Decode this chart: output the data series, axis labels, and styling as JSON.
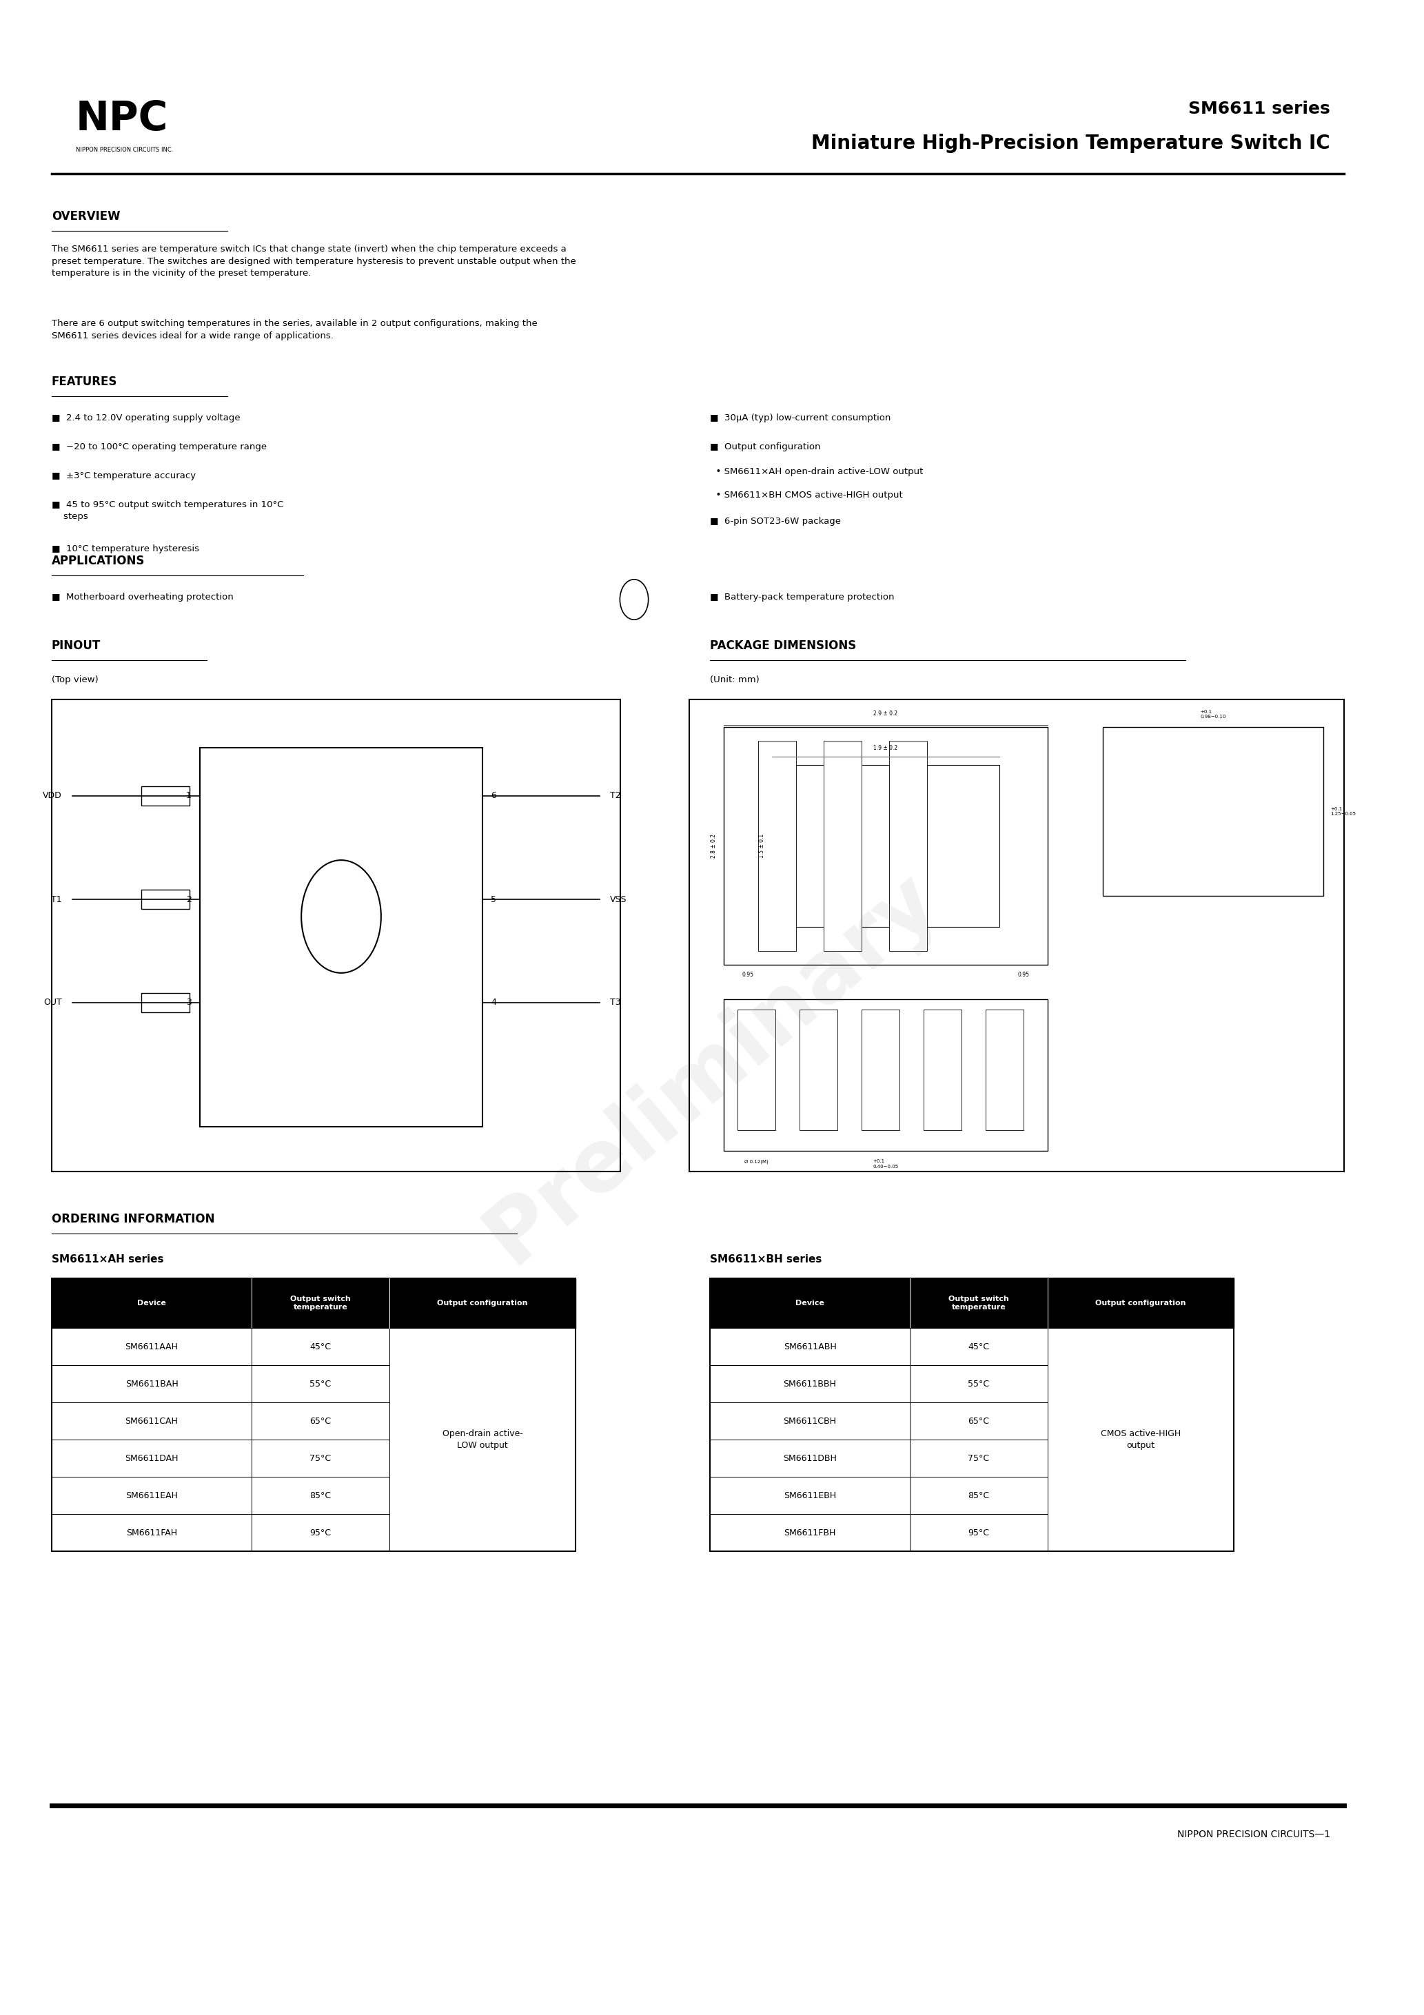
{
  "bg_color": "#ffffff",
  "text_color": "#000000",
  "page_width": 20.66,
  "page_height": 29.24,
  "header": {
    "logo_text": "NPC",
    "logo_sub": "NIPPON PRECISION CIRCUITS INC.",
    "series_title": "SM6611 series",
    "main_title": "Miniature High-Precision Temperature Switch IC"
  },
  "overview": {
    "heading": "OVERVIEW",
    "para1": "The SM6611 series are temperature switch ICs that change state (invert) when the chip temperature exceeds a\npreset temperature. The switches are designed with temperature hysteresis to prevent unstable output when the\ntemperature is in the vicinity of the preset temperature.",
    "para2": "There are 6 output switching temperatures in the series, available in 2 output configurations, making the\nSM6611 series devices ideal for a wide range of applications."
  },
  "features": {
    "heading": "FEATURES",
    "left_items": [
      "2.4 to 12.0V operating supply voltage",
      "−20 to 100°C operating temperature range",
      "±3°C temperature accuracy",
      "45 to 95°C output switch temperatures in 10°C\n    steps",
      "10°C temperature hysteresis"
    ],
    "right_items": [
      "30μA (typ) low-current consumption",
      "Output configuration",
      "  • SM6611×AH open-drain active-LOW output",
      "  • SM6611×BH CMOS active-HIGH output",
      "6-pin SOT23-6W package"
    ]
  },
  "applications": {
    "heading": "APPLICATIONS",
    "left_item": "■  Motherboard overheating protection",
    "right_item": "■  Battery-pack temperature protection"
  },
  "pinout": {
    "heading": "PINOUT",
    "sub": "(Top view)",
    "pins_left": [
      [
        "VDD",
        "1"
      ],
      [
        "T1",
        "2"
      ],
      [
        "OUT",
        "3"
      ]
    ],
    "pins_right": [
      [
        "6",
        "T2"
      ],
      [
        "5",
        "VSS"
      ],
      [
        "4",
        "T3"
      ]
    ]
  },
  "package": {
    "heading": "PACKAGE DIMENSIONS",
    "sub": "(Unit: mm)"
  },
  "ordering": {
    "heading": "ORDERING INFORMATION",
    "ah_title": "SM6611×AH series",
    "bh_title": "SM6611×BH series",
    "ah_headers": [
      "Device",
      "Output switch\ntemperature",
      "Output configuration"
    ],
    "bh_headers": [
      "Device",
      "Output switch\ntemperature",
      "Output configuration"
    ],
    "ah_rows": [
      [
        "SM6611AAH",
        "45°C"
      ],
      [
        "SM6611BAH",
        "55°C"
      ],
      [
        "SM6611CAH",
        "65°C"
      ],
      [
        "SM6611DAH",
        "75°C"
      ],
      [
        "SM6611EAH",
        "85°C"
      ],
      [
        "SM6611FAH",
        "95°C"
      ]
    ],
    "ah_config": "Open-drain active-\nLOW output",
    "bh_rows": [
      [
        "SM6611ABH",
        "45°C"
      ],
      [
        "SM6611BBH",
        "55°C"
      ],
      [
        "SM6611CBH",
        "65°C"
      ],
      [
        "SM6611DBH",
        "75°C"
      ],
      [
        "SM6611EBH",
        "85°C"
      ],
      [
        "SM6611FBH",
        "95°C"
      ]
    ],
    "bh_config": "CMOS active-HIGH\noutput"
  },
  "footer": "NIPPON PRECISION CIRCUITS—1"
}
